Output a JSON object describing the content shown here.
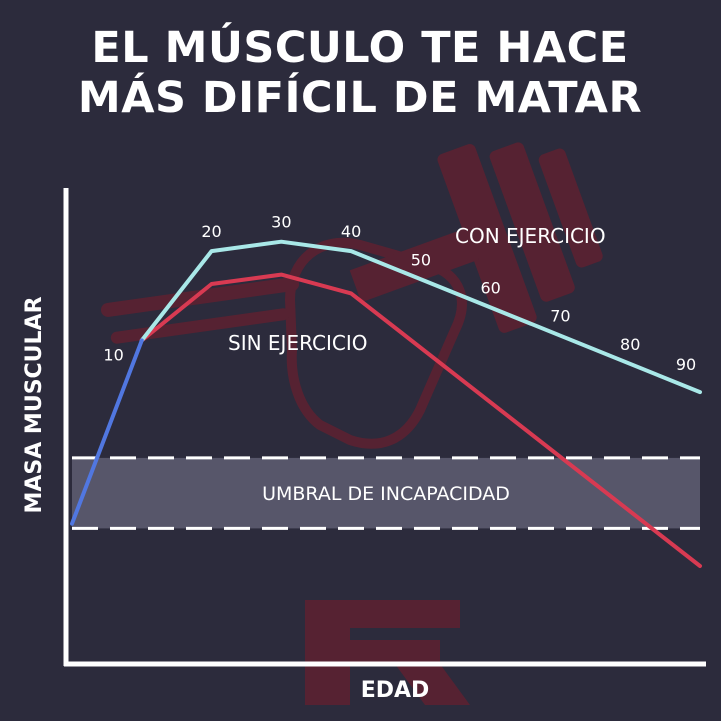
{
  "title": {
    "line1": "EL MÚSCULO TE HACE",
    "line2": "MÁS DIFÍCIL DE MATAR"
  },
  "colors": {
    "background": "#2c2b3c",
    "growth": "#5177e0",
    "con_ejercicio": "#a9e8e8",
    "sin_ejercicio": "#d83a52",
    "threshold_band": "#57566a",
    "watermark": "#7a1c2a"
  },
  "chart_data": {
    "type": "line",
    "xlabel": "EDAD",
    "ylabel": "MASA MUSCULAR",
    "grid": false,
    "xlim": [
      0,
      90
    ],
    "ylim": [
      0,
      100
    ],
    "threshold": {
      "label": "UMBRAL DE INCAPACIDAD",
      "range": [
        28,
        43
      ]
    },
    "growth_segment": {
      "x": [
        0,
        10
      ],
      "y": [
        29,
        68
      ]
    },
    "series": [
      {
        "name": "CON EJERCICIO",
        "x": [
          10,
          20,
          30,
          40,
          90
        ],
        "y": [
          68,
          87,
          89,
          87,
          57
        ]
      },
      {
        "name": "SIN EJERCICIO",
        "x": [
          10,
          20,
          30,
          40,
          90
        ],
        "y": [
          68,
          80,
          82,
          78,
          20
        ]
      }
    ],
    "age_labels": [
      "10",
      "20",
      "30",
      "40",
      "50",
      "60",
      "70",
      "80",
      "90"
    ]
  }
}
